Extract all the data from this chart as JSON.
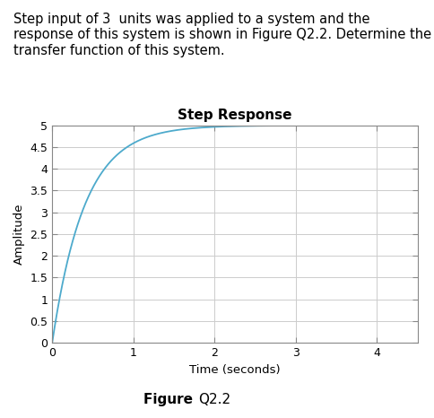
{
  "title": "Step Response",
  "xlabel": "Time (seconds)",
  "ylabel": "Amplitude",
  "figure_caption_bold": "Figure ",
  "figure_caption_normal": "Q2.2",
  "header_line1": "Step input of 3  units was applied to a system and the",
  "header_line2": "response of this system is shown in Figure Q2.2. Determine the",
  "header_line3": "transfer function of this system.",
  "line_color": "#4DAACC",
  "grid_color": "#CCCCCC",
  "steady_state": 5.0,
  "time_constant": 0.4,
  "t_start": 0.0,
  "t_end": 4.5,
  "xlim": [
    0,
    4.5
  ],
  "ylim": [
    0,
    5.0
  ],
  "xticks": [
    0,
    1,
    2,
    3,
    4
  ],
  "yticks": [
    0,
    0.5,
    1,
    1.5,
    2,
    2.5,
    3,
    3.5,
    4,
    4.5,
    5
  ],
  "ytick_labels": [
    "0",
    "0.5",
    "1",
    "1.5",
    "2",
    "2.5",
    "3",
    "3.5",
    "4",
    "4.5",
    "5"
  ],
  "title_fontsize": 11,
  "label_fontsize": 9.5,
  "tick_fontsize": 9,
  "caption_fontsize": 11,
  "header_fontsize": 10.5
}
